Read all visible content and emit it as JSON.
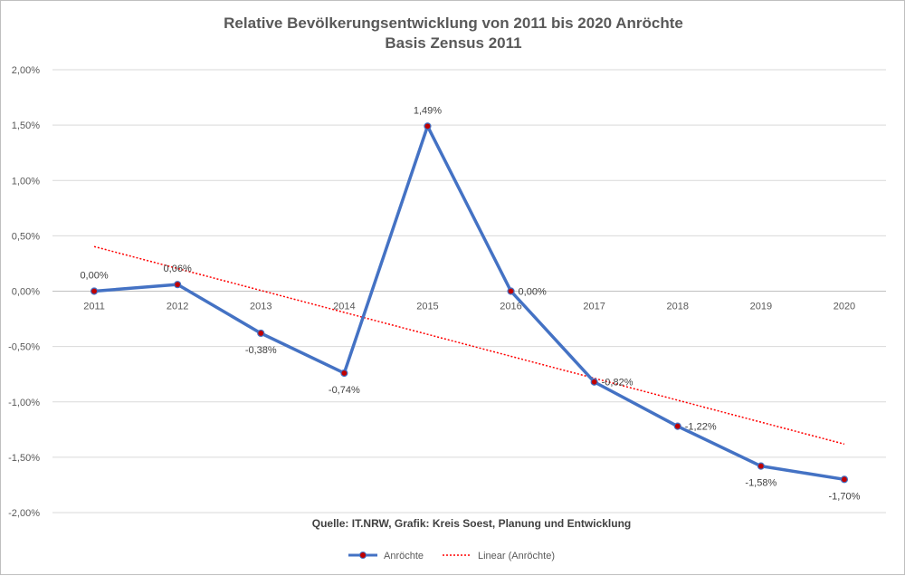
{
  "chart_data": {
    "type": "line",
    "title": "Relative Bevölkerungsentwicklung von 2011 bis 2020 Anröchte",
    "subtitle": "Basis Zensus 2011",
    "categories": [
      "2011",
      "2012",
      "2013",
      "2014",
      "2015",
      "2016",
      "2017",
      "2018",
      "2019",
      "2020"
    ],
    "series": [
      {
        "name": "Anröchte",
        "values": [
          0.0,
          0.06,
          -0.38,
          -0.74,
          1.49,
          0.0,
          -0.82,
          -1.22,
          -1.58,
          -1.7
        ],
        "labels": [
          "0,00%",
          "0,06%",
          "-0,38%",
          "-0,74%",
          "1,49%",
          "0,00%",
          "-0,82%",
          "-1,22%",
          "-1,58%",
          "-1,70%"
        ],
        "color": "#4472c4",
        "marker_color": "#c00000"
      }
    ],
    "trendline": {
      "name": "Linear (Anröchte)",
      "type": "linear",
      "color": "#ff0000"
    },
    "yticks": [
      "2,00%",
      "1,50%",
      "1,00%",
      "0,50%",
      "0,00%",
      "-0,50%",
      "-1,00%",
      "-1,50%",
      "-2,00%"
    ],
    "ytick_values": [
      2.0,
      1.5,
      1.0,
      0.5,
      0.0,
      -0.5,
      -1.0,
      -1.5,
      -2.0
    ],
    "ylim": [
      -2.0,
      2.0
    ],
    "grid": true,
    "legend_position": "bottom",
    "source": "Quelle: IT.NRW, Grafik: Kreis Soest, Planung und Entwicklung"
  }
}
